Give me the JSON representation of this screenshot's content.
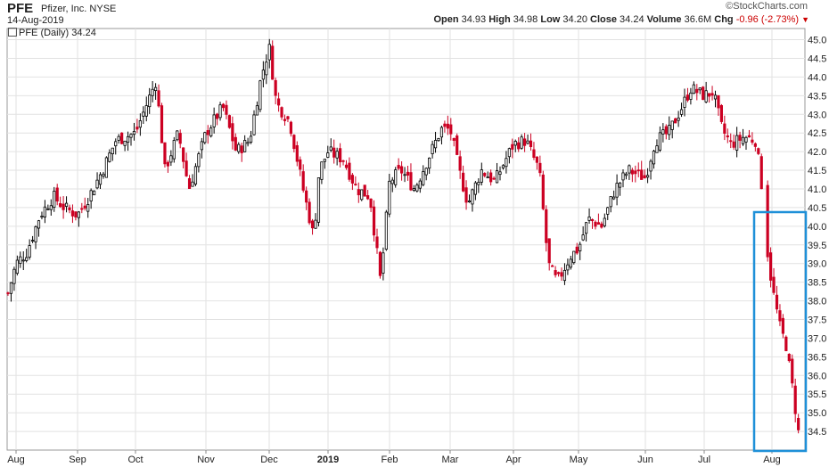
{
  "header": {
    "symbol": "PFE",
    "company": "Pfizer, Inc. NYSE",
    "date": "14-Aug-2019",
    "logo": "©StockCharts.com",
    "open_label": "Open",
    "open": "34.93",
    "high_label": "High",
    "high": "34.98",
    "low_label": "Low",
    "low": "34.20",
    "close_label": "Close",
    "close": "34.24",
    "volume_label": "Volume",
    "volume": "36.6M",
    "chg_label": "Chg",
    "chg": "-0.96 (-2.73%)"
  },
  "legend": {
    "text": "PFE (Daily) 34.24"
  },
  "colors": {
    "up": "#ffffff",
    "up_stroke": "#000000",
    "down": "#cc0022",
    "grid": "#e2e2e2",
    "highlight": "#1e90d8"
  },
  "chart_data": {
    "type": "candlestick",
    "x_ticks": [
      "Aug",
      "Sep",
      "Oct",
      "Nov",
      "Dec",
      "2019",
      "Feb",
      "Mar",
      "Apr",
      "May",
      "Jun",
      "Jul",
      "Aug"
    ],
    "y_ticks": [
      "45.0",
      "44.5",
      "44.0",
      "43.5",
      "43.0",
      "42.5",
      "42.0",
      "41.5",
      "41.0",
      "40.5",
      "40.0",
      "39.5",
      "39.0",
      "38.5",
      "38.0",
      "37.5",
      "37.0",
      "36.5",
      "36.0",
      "35.5",
      "35.0",
      "34.5"
    ],
    "ylim": [
      34.0,
      45.3
    ],
    "grid": true,
    "scale": "linear",
    "highlight_box": "last two weeks (Aug 2019)",
    "close_by_month": [
      {
        "month": "Aug",
        "close": 39.3
      },
      {
        "month": "Sep",
        "close": 40.3
      },
      {
        "month": "Oct",
        "close": 42.5
      },
      {
        "month": "Nov",
        "close": 42.5
      },
      {
        "month": "Dec",
        "close": 44.8
      },
      {
        "month": "2019",
        "close": 42.0
      },
      {
        "month": "Feb",
        "close": 41.2
      },
      {
        "month": "Mar",
        "close": 42.6
      },
      {
        "month": "Apr",
        "close": 42.2
      },
      {
        "month": "May",
        "close": 39.4
      },
      {
        "month": "Jun",
        "close": 41.3
      },
      {
        "month": "Jul",
        "close": 43.6
      },
      {
        "month": "Aug",
        "close": 34.24
      }
    ]
  }
}
